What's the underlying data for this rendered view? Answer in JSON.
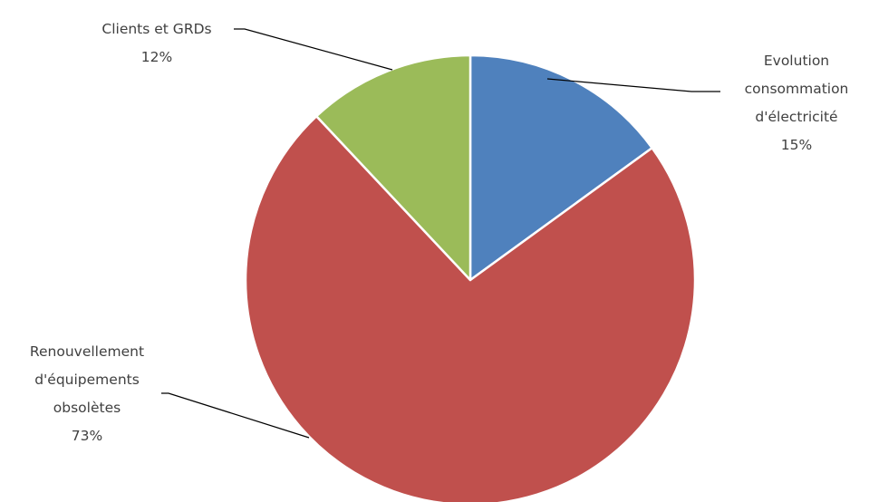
{
  "chart_data": {
    "type": "pie",
    "slices": [
      {
        "label_lines": [
          "Evolution",
          "consommation",
          "d'électricité"
        ],
        "pct_label": "15%",
        "value": 15,
        "color": "#4F81BD"
      },
      {
        "label_lines": [
          "Renouvellement",
          "d'équipements",
          "obsolètes"
        ],
        "pct_label": "73%",
        "value": 73,
        "color": "#C0504D"
      },
      {
        "label_lines": [
          "Clients et GRDs"
        ],
        "pct_label": "12%",
        "value": 12,
        "color": "#9BBB59"
      }
    ],
    "start": "12 o'clock",
    "direction": "clockwise",
    "legend": "none",
    "data_labels": "outside with leader lines"
  }
}
